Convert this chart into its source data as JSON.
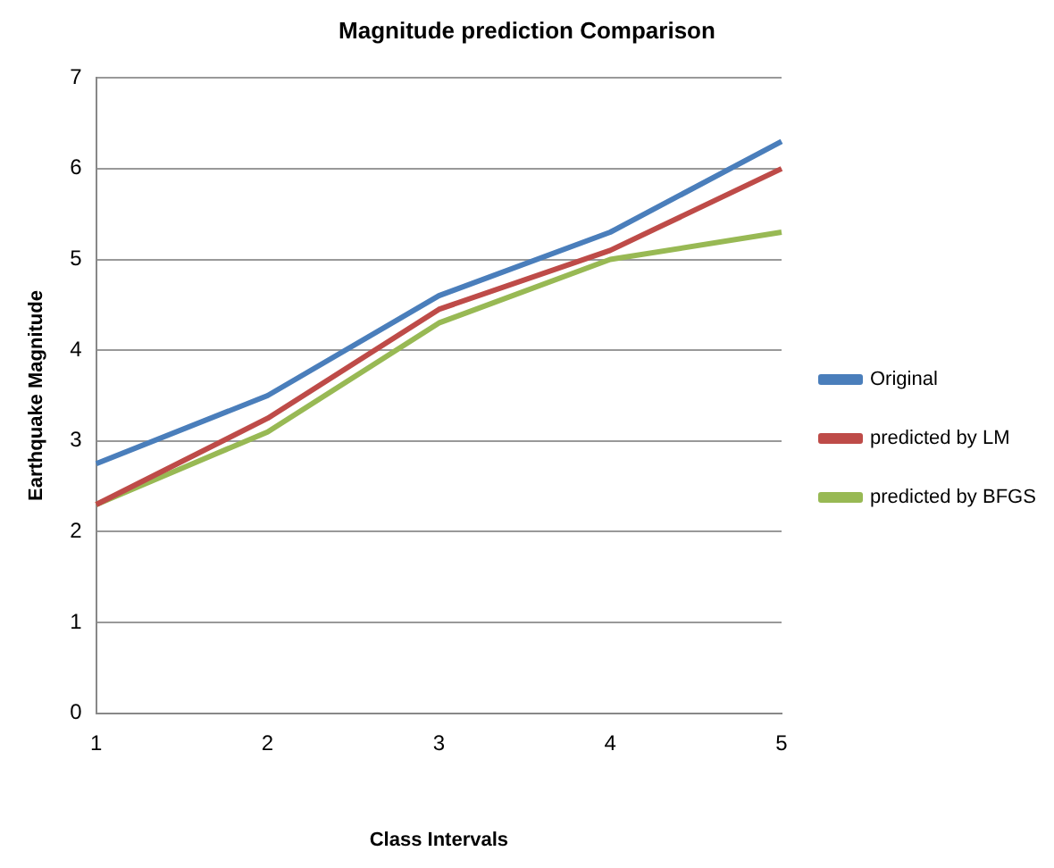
{
  "chart_data": {
    "type": "line",
    "title": "Magnitude prediction Comparison",
    "xlabel": "Class Intervals",
    "ylabel": "Earthquake Magnitude",
    "categories": [
      "1",
      "2",
      "3",
      "4",
      "5"
    ],
    "series": [
      {
        "name": "Original",
        "color": "#4a7ebb",
        "values": [
          2.75,
          3.5,
          4.6,
          5.3,
          6.3
        ]
      },
      {
        "name": "predicted by LM",
        "color": "#be4b48",
        "values": [
          2.3,
          3.25,
          4.45,
          5.1,
          6.0
        ]
      },
      {
        "name": "predicted by BFGS",
        "color": "#98b954",
        "values": [
          2.3,
          3.1,
          4.3,
          5.0,
          5.3
        ]
      }
    ],
    "ylim": [
      0,
      7
    ],
    "yticks": [
      0,
      1,
      2,
      3,
      4,
      5,
      6,
      7
    ],
    "grid": "y",
    "legend": "right",
    "marker": "none",
    "line_style": "solid"
  }
}
